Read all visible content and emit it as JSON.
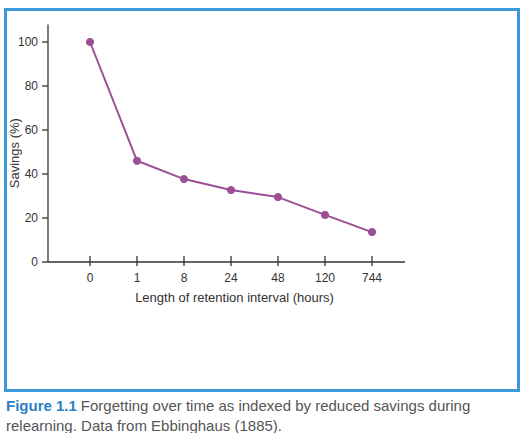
{
  "chart_data": {
    "type": "line",
    "title": "Figure 1.1",
    "caption": "Forgetting over time as indexed by reduced savings during relearning. Data from Ebbinghaus (1885).",
    "x_label": "Length of retention interval (hours)",
    "y_label": "Savings (%)",
    "categories": [
      "0",
      "1",
      "8",
      "24",
      "48",
      "120",
      "744"
    ],
    "values": [
      100,
      46,
      37.7,
      32.7,
      29.5,
      21.4,
      13.6
    ],
    "color": "#9b5096",
    "marker": "circle",
    "ylim": [
      0,
      108
    ],
    "yticks": [
      0,
      20,
      40,
      60,
      80,
      100
    ],
    "grid": false
  }
}
